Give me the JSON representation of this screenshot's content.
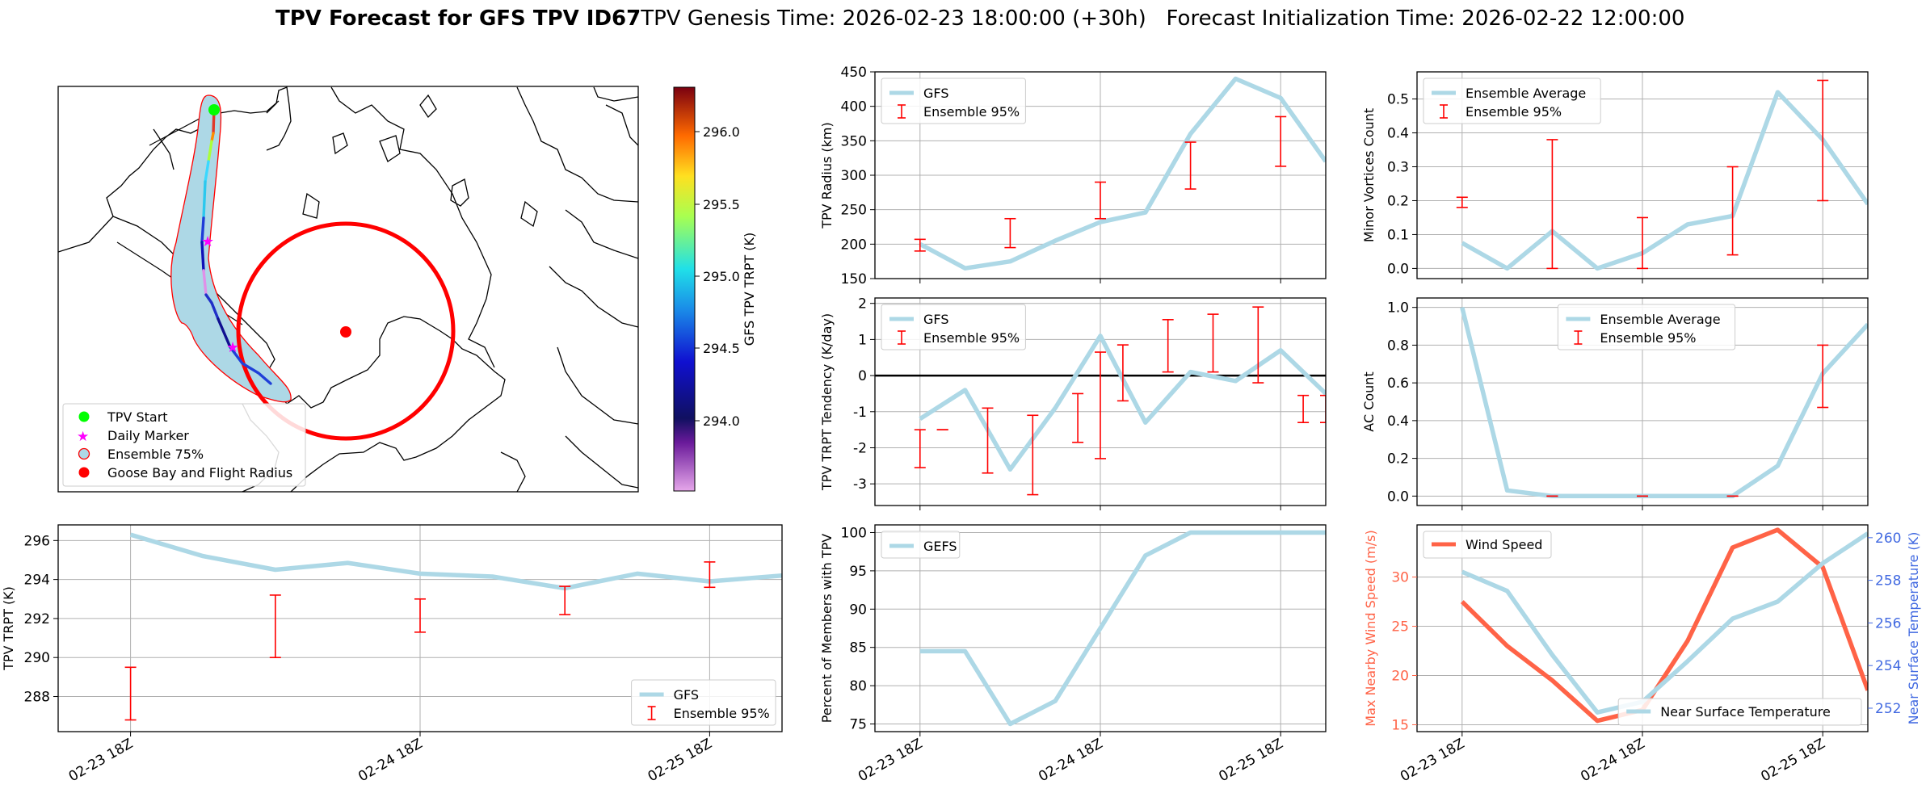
{
  "header": {
    "title_bold": "TPV Forecast for GFS TPV ID67",
    "title_rest": "TPV Genesis Time: 2026-02-23 18:00:00 (+30h)   Forecast Initialization Time: 2026-02-22 12:00:00"
  },
  "colors": {
    "gfs": "#add8e6",
    "ens": "#ff0000",
    "wind": "#ff6347",
    "temp": "#add8e6",
    "black": "#000000"
  },
  "map": {
    "legend": [
      "TPV Start",
      "Daily Marker",
      "Ensemble 75%",
      "Goose Bay and Flight Radius"
    ],
    "colorbar": {
      "label": "GFS TPV TRPT (K)",
      "ticks": [
        "296.0",
        "295.5",
        "295.0",
        "294.5",
        "294.0"
      ]
    }
  },
  "chart_data": [
    {
      "id": "radius",
      "type": "line",
      "ylabel": "TPV Radius (km)",
      "x": [
        0,
        0.25,
        0.5,
        0.75,
        1.0,
        1.25,
        1.5,
        1.75,
        2.0,
        2.25
      ],
      "xticks": [
        "02-23 18Z",
        "02-24 18Z",
        "02-25 18Z"
      ],
      "ylim": [
        150,
        450
      ],
      "yticks": [
        150,
        200,
        250,
        300,
        350,
        400,
        450
      ],
      "series": [
        {
          "name": "GFS",
          "values": [
            200,
            165,
            175,
            205,
            232,
            246,
            360,
            440,
            412,
            320
          ]
        }
      ],
      "errorbars": {
        "name": "Ensemble 95%",
        "x": [
          0,
          0.5,
          1.0,
          1.5,
          2.0
        ],
        "low": [
          190,
          195,
          237,
          280,
          313
        ],
        "high": [
          207,
          237,
          290,
          348,
          385
        ]
      },
      "legend": [
        "GFS",
        "Ensemble 95%"
      ]
    },
    {
      "id": "minor",
      "type": "line",
      "ylabel": "Minor Vortices Count",
      "x": [
        0,
        0.25,
        0.5,
        0.75,
        1.0,
        1.25,
        1.5,
        1.75,
        2.0,
        2.25
      ],
      "xticks": [
        "02-23 18Z",
        "02-24 18Z",
        "02-25 18Z"
      ],
      "ylim": [
        -0.03,
        0.58
      ],
      "yticks": [
        0.0,
        0.1,
        0.2,
        0.3,
        0.4,
        0.5
      ],
      "series": [
        {
          "name": "Ensemble Average",
          "values": [
            0.075,
            0.0,
            0.11,
            0.0,
            0.045,
            0.13,
            0.155,
            0.52,
            0.38,
            0.19
          ]
        }
      ],
      "errorbars": {
        "name": "Ensemble 95%",
        "x": [
          0,
          0.5,
          1.0,
          1.5,
          2.0
        ],
        "low": [
          0.18,
          0.0,
          0.0,
          0.04,
          0.2
        ],
        "high": [
          0.21,
          0.38,
          0.15,
          0.3,
          0.555
        ]
      },
      "legend": [
        "Ensemble Average",
        "Ensemble 95%"
      ]
    },
    {
      "id": "tendency",
      "type": "line",
      "ylabel": "TPV TRPT Tendency (K/day)",
      "x": [
        0,
        0.25,
        0.5,
        0.75,
        1.0,
        1.25,
        1.5,
        1.75,
        2.0,
        2.25
      ],
      "xticks": [
        "02-23 18Z",
        "02-24 18Z",
        "02-25 18Z"
      ],
      "ylim": [
        -3.6,
        2.15
      ],
      "yticks": [
        -3,
        -2,
        -1,
        0,
        1,
        2
      ],
      "series": [
        {
          "name": "GFS",
          "values": [
            -1.2,
            -0.4,
            -2.6,
            -0.9,
            1.1,
            -1.3,
            0.1,
            -0.15,
            0.7,
            -0.5
          ]
        }
      ],
      "errorbars": {
        "name": "Ensemble 95%",
        "x": [
          0,
          0.125,
          0.375,
          0.625,
          0.875,
          1.0,
          1.125,
          1.375,
          1.625,
          1.875,
          2.125,
          2.25
        ],
        "low": [
          -2.55,
          -1.5,
          -2.7,
          -3.3,
          -1.85,
          -2.3,
          -0.7,
          0.1,
          0.1,
          -0.2,
          -1.3,
          -1.3
        ],
        "high": [
          -1.5,
          -1.5,
          -0.9,
          -1.1,
          -0.5,
          0.65,
          0.85,
          1.55,
          1.7,
          1.9,
          -0.55,
          -0.55
        ]
      },
      "zero_line": true,
      "legend": [
        "GFS",
        "Ensemble 95%"
      ]
    },
    {
      "id": "ac",
      "type": "line",
      "ylabel": "AC Count",
      "x": [
        0,
        0.25,
        0.5,
        0.75,
        1.0,
        1.25,
        1.5,
        1.75,
        2.0,
        2.25
      ],
      "xticks": [
        "02-23 18Z",
        "02-24 18Z",
        "02-25 18Z"
      ],
      "ylim": [
        -0.05,
        1.05
      ],
      "yticks": [
        0.0,
        0.2,
        0.4,
        0.6,
        0.8,
        1.0
      ],
      "series": [
        {
          "name": "Ensemble Average",
          "values": [
            1.0,
            0.03,
            0.0,
            0.0,
            0.0,
            0.0,
            0.0,
            0.16,
            0.65,
            0.91
          ]
        }
      ],
      "errorbars": {
        "name": "Ensemble 95%",
        "x": [
          0.5,
          1.0,
          1.5,
          2.0
        ],
        "low": [
          0.0,
          0.0,
          0.0,
          0.47
        ],
        "high": [
          0.0,
          0.0,
          0.0,
          0.8
        ]
      },
      "legend": [
        "Ensemble Average",
        "Ensemble 95%"
      ]
    },
    {
      "id": "trpt",
      "type": "line",
      "ylabel": "TPV TRPT (K)",
      "x": [
        0,
        0.25,
        0.5,
        0.75,
        1.0,
        1.25,
        1.5,
        1.75,
        2.0,
        2.25
      ],
      "xticks": [
        "02-23 18Z",
        "02-24 18Z",
        "02-25 18Z"
      ],
      "ylim": [
        286.2,
        296.8
      ],
      "yticks": [
        288,
        290,
        292,
        294,
        296
      ],
      "series": [
        {
          "name": "GFS",
          "values": [
            296.3,
            295.2,
            294.5,
            294.85,
            294.3,
            294.15,
            293.55,
            294.3,
            293.9,
            294.2
          ]
        }
      ],
      "errorbars": {
        "name": "Ensemble 95%",
        "x": [
          0,
          0.5,
          1.0,
          1.5,
          2.0
        ],
        "low": [
          286.8,
          290.0,
          291.3,
          292.2,
          293.6
        ],
        "high": [
          289.5,
          293.2,
          293.0,
          293.65,
          294.9
        ]
      },
      "legend": [
        "GFS",
        "Ensemble 95%"
      ]
    },
    {
      "id": "percent",
      "type": "line",
      "ylabel": "Percent of Members with TPV",
      "x": [
        0,
        0.25,
        0.5,
        0.75,
        1.0,
        1.25,
        1.5,
        1.75,
        2.0,
        2.25
      ],
      "xticks": [
        "02-23 18Z",
        "02-24 18Z",
        "02-25 18Z"
      ],
      "ylim": [
        74,
        101
      ],
      "yticks": [
        75,
        80,
        85,
        90,
        95,
        100
      ],
      "series": [
        {
          "name": "GEFS",
          "values": [
            84.5,
            84.5,
            75,
            78,
            87.5,
            97,
            100,
            100,
            100,
            100
          ]
        }
      ],
      "legend": [
        "GEFS"
      ]
    },
    {
      "id": "wind",
      "type": "line",
      "ylabel": "Max Nearby Wind Speed (m/s)",
      "y2label": "Near Surface Temperature (K)",
      "x": [
        0,
        0.25,
        0.5,
        0.75,
        1.0,
        1.25,
        1.5,
        1.75,
        2.0,
        2.25
      ],
      "xticks": [
        "02-23 18Z",
        "02-24 18Z",
        "02-25 18Z"
      ],
      "ylim": [
        14.3,
        35.3
      ],
      "yticks": [
        15,
        20,
        25,
        30
      ],
      "y2lim": [
        250.9,
        260.6
      ],
      "y2ticks": [
        252,
        254,
        256,
        258,
        260
      ],
      "series": [
        {
          "name": "Wind Speed",
          "axis": "left",
          "values": [
            27.5,
            23.0,
            19.5,
            15.4,
            16.5,
            23.5,
            33.0,
            34.8,
            31.0,
            18.5
          ]
        },
        {
          "name": "Near Surface Temperature",
          "axis": "right",
          "values": [
            258.4,
            257.5,
            254.5,
            251.8,
            252.3,
            254.2,
            256.2,
            257.0,
            258.8,
            260.2
          ]
        }
      ],
      "legend": [
        "Wind Speed",
        "Near Surface Temperature"
      ]
    }
  ]
}
